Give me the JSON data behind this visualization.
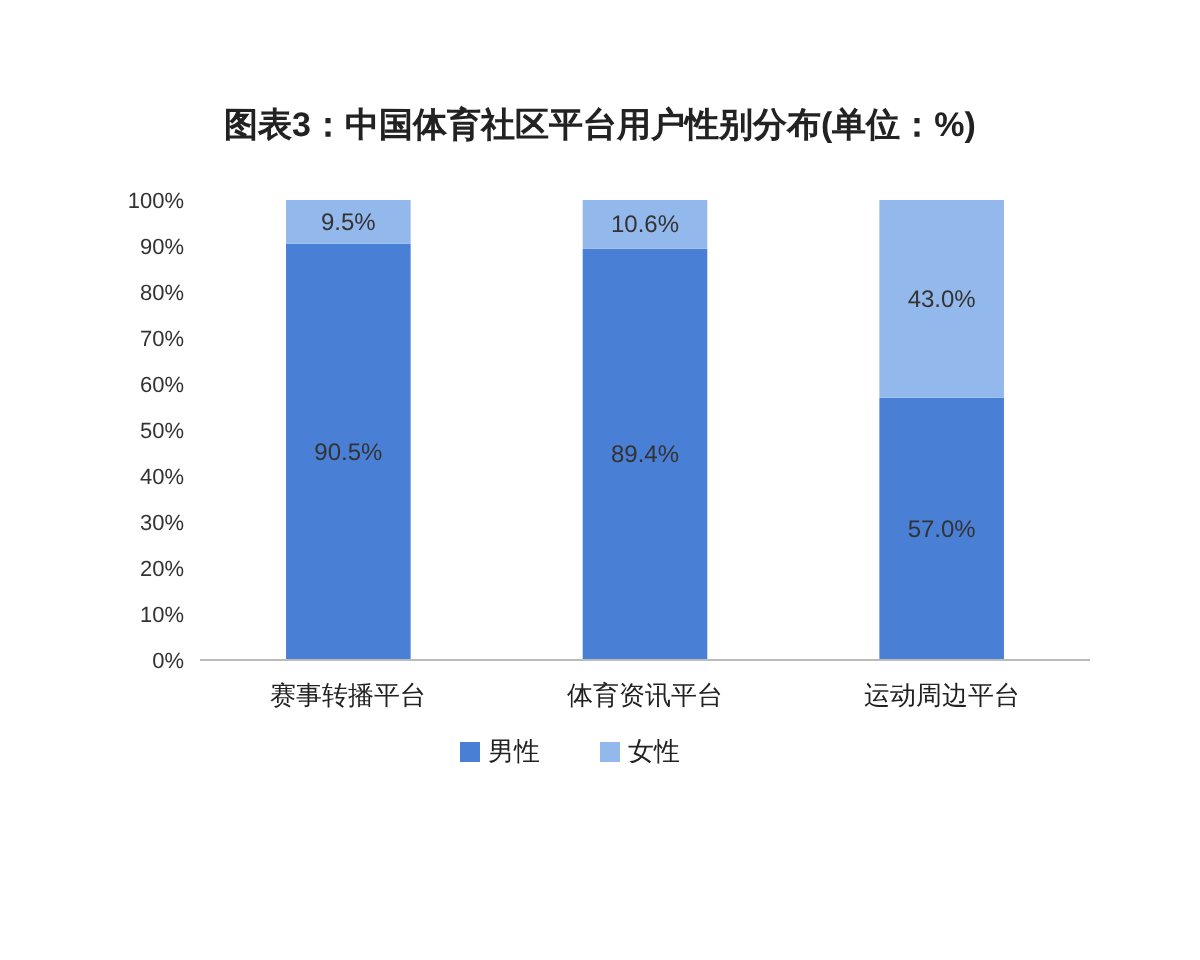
{
  "chart_data": {
    "type": "bar",
    "stacked": true,
    "title": "图表3：中国体育社区平台用户性别分布(单位：%)",
    "categories": [
      "赛事转播平台",
      "体育资讯平台",
      "运动周边平台"
    ],
    "series": [
      {
        "name": "男性",
        "color": "#4a7fd6",
        "values": [
          90.5,
          89.4,
          57.0
        ],
        "value_labels": [
          "90.5%",
          "89.4%",
          "57.0%"
        ]
      },
      {
        "name": "女性",
        "color": "#93b8ec",
        "values": [
          9.5,
          10.6,
          43.0
        ],
        "value_labels": [
          "9.5%",
          "10.6%",
          "43.0%"
        ]
      }
    ],
    "ylim": [
      0,
      100
    ],
    "yticks": [
      {
        "value": 0,
        "label": "0%"
      },
      {
        "value": 10,
        "label": "10%"
      },
      {
        "value": 20,
        "label": "20%"
      },
      {
        "value": 30,
        "label": "30%"
      },
      {
        "value": 40,
        "label": "40%"
      },
      {
        "value": 50,
        "label": "50%"
      },
      {
        "value": 60,
        "label": "60%"
      },
      {
        "value": 70,
        "label": "70%"
      },
      {
        "value": 80,
        "label": "80%"
      },
      {
        "value": 90,
        "label": "90%"
      },
      {
        "value": 100,
        "label": "100%"
      }
    ],
    "grid": false,
    "legend": "bottom"
  }
}
